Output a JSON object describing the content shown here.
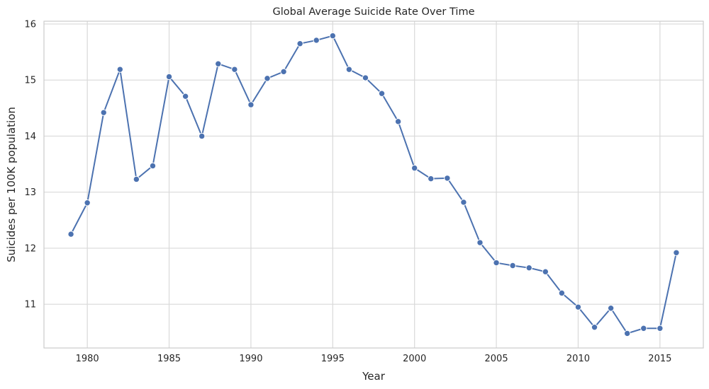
{
  "chart_data": {
    "type": "line",
    "title": "Global Average Suicide Rate Over Time",
    "xlabel": "Year",
    "ylabel": "Suicides per 100K population",
    "xlim": [
      1977.35,
      2017.65
    ],
    "ylim": [
      10.22,
      16.05
    ],
    "xticks": [
      1980,
      1985,
      1990,
      1995,
      2000,
      2005,
      2010,
      2015
    ],
    "yticks": [
      11,
      12,
      13,
      14,
      15,
      16
    ],
    "grid": true,
    "series": [
      {
        "color": "#4c72b0",
        "marker": "circle",
        "x": [
          1979,
          1980,
          1981,
          1982,
          1983,
          1984,
          1985,
          1986,
          1987,
          1988,
          1989,
          1990,
          1991,
          1992,
          1993,
          1994,
          1995,
          1996,
          1997,
          1998,
          1999,
          2000,
          2001,
          2002,
          2003,
          2004,
          2005,
          2006,
          2007,
          2008,
          2009,
          2010,
          2011,
          2012,
          2013,
          2014,
          2015,
          2016
        ],
        "y": [
          12.25,
          12.81,
          14.42,
          15.19,
          13.23,
          13.47,
          15.06,
          14.71,
          14.0,
          15.29,
          15.19,
          14.56,
          15.03,
          15.15,
          15.65,
          15.71,
          15.79,
          15.19,
          15.04,
          14.76,
          14.26,
          13.43,
          13.24,
          13.25,
          12.82,
          12.1,
          11.74,
          11.69,
          11.65,
          11.58,
          11.2,
          10.95,
          10.59,
          10.93,
          10.48,
          10.57,
          10.57,
          11.92
        ]
      }
    ]
  }
}
